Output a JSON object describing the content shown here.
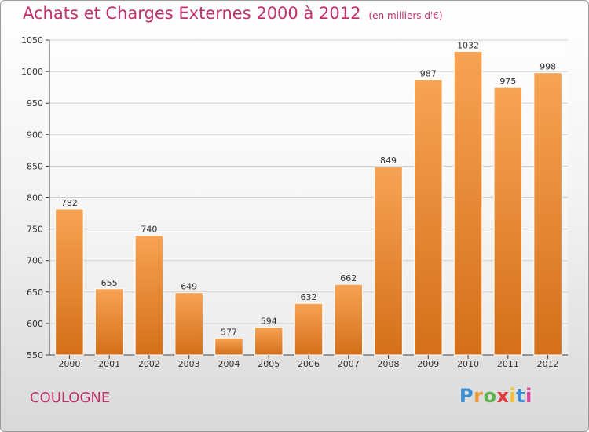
{
  "title": "Achats et Charges Externes 2000 à 2012",
  "unit": "(en milliers d'€)",
  "city": "COULOGNE",
  "logo": "Proxiti",
  "colors": {
    "bar_light": "#f7a354",
    "bar_dark": "#d46f1a",
    "title": "#c0306a",
    "grid": "#cfcfcf"
  },
  "chart_data": {
    "type": "bar",
    "categories": [
      "2000",
      "2001",
      "2002",
      "2003",
      "2004",
      "2005",
      "2006",
      "2007",
      "2008",
      "2009",
      "2010",
      "2011",
      "2012"
    ],
    "values": [
      782,
      655,
      740,
      649,
      577,
      594,
      632,
      662,
      849,
      987,
      1032,
      975,
      998
    ],
    "ylim": [
      550,
      1050
    ],
    "yticks": [
      550,
      600,
      650,
      700,
      750,
      800,
      850,
      900,
      950,
      1000,
      1050
    ],
    "grid": true,
    "data_labels": true
  }
}
